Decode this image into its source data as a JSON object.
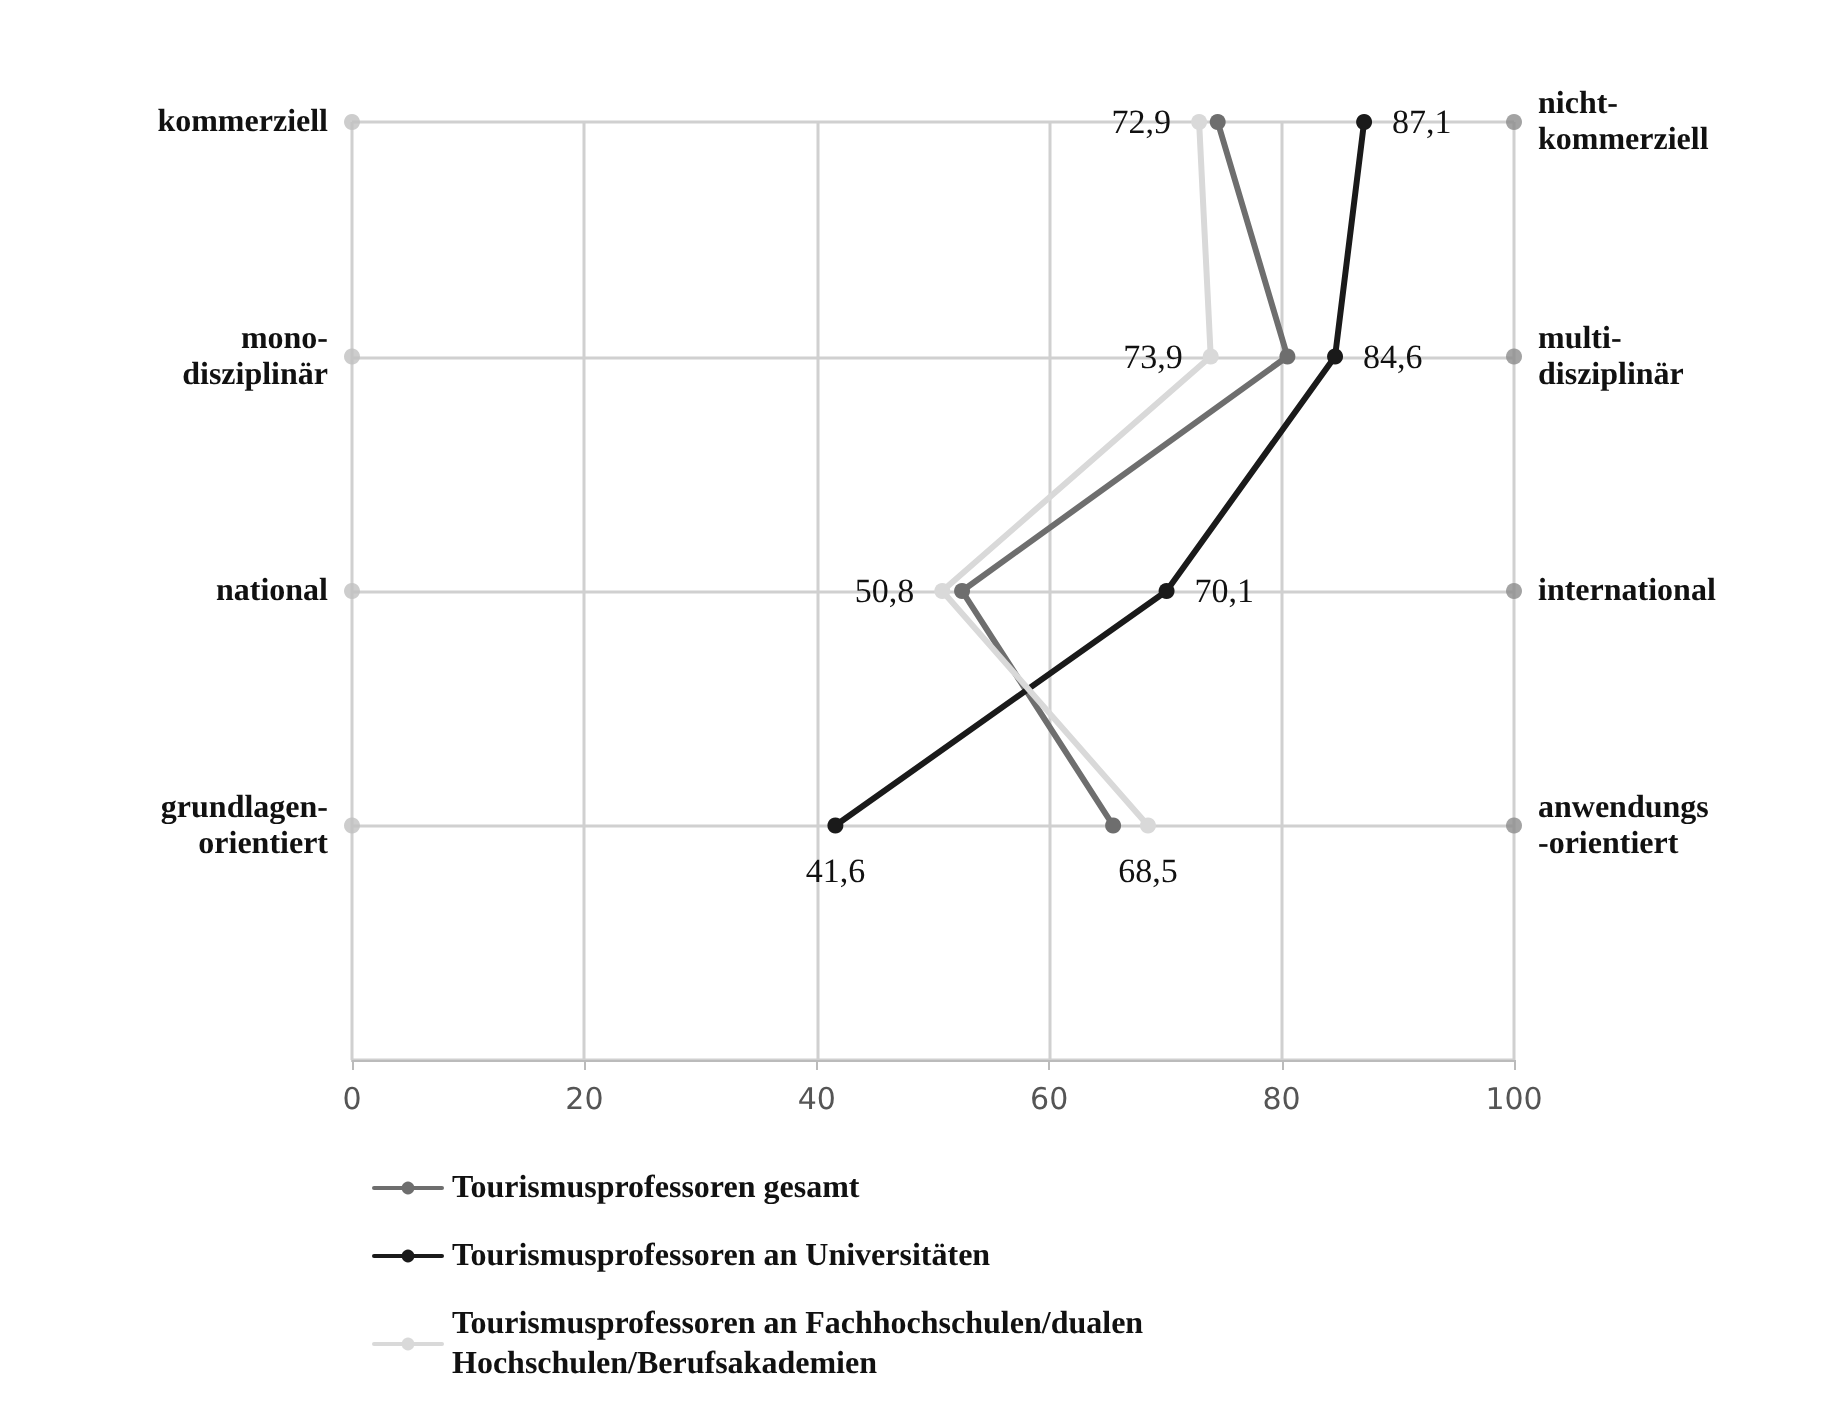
{
  "chart_data": {
    "type": "line",
    "orientation": "horizontal",
    "categories": [
      "kommerziell",
      "mono-\ndisziplinär",
      "national",
      "grundlagen-\norientiert",
      null
    ],
    "y2_categories": [
      "nicht-\nkommerziell",
      "multi-\ndisziplinär",
      "international",
      "anwendungs\n-orientiert",
      null
    ],
    "series": [
      {
        "type": "scatter",
        "color": "#c0c0c0",
        "values": [
          0,
          0,
          0,
          0,
          null
        ]
      },
      {
        "type": "scatter",
        "color": "#8c8c8c",
        "values": [
          100,
          100,
          100,
          100,
          null
        ]
      },
      {
        "name": "Tourismusprofessoren gesamt",
        "color": "#6e6e6e",
        "values": [
          74.5,
          80.5,
          52.5,
          65.5,
          null
        ]
      },
      {
        "name": "Tourismusprofessoren an Universitäten",
        "color": "#1a1a1a",
        "values": [
          87.1,
          84.6,
          70.1,
          41.6,
          null
        ],
        "value_labels": [
          "87,1",
          "84,6",
          "70,1",
          "41,6",
          null
        ]
      },
      {
        "name": "Tourismusprofessoren an Fachhochschulen/dualen\nHochschulen/Berufsakademien",
        "color": "#d9d9d9",
        "values": [
          72.9,
          73.9,
          50.8,
          68.5,
          null
        ],
        "value_labels": [
          "72,9",
          "73,9",
          "50,8",
          "68,5",
          null
        ]
      }
    ],
    "xlim": [
      0,
      100
    ],
    "xticks": [
      0,
      20,
      40,
      60,
      80,
      100
    ],
    "grid": true,
    "legend": "bottom left",
    "marker": "circle",
    "line_style": "solid"
  }
}
